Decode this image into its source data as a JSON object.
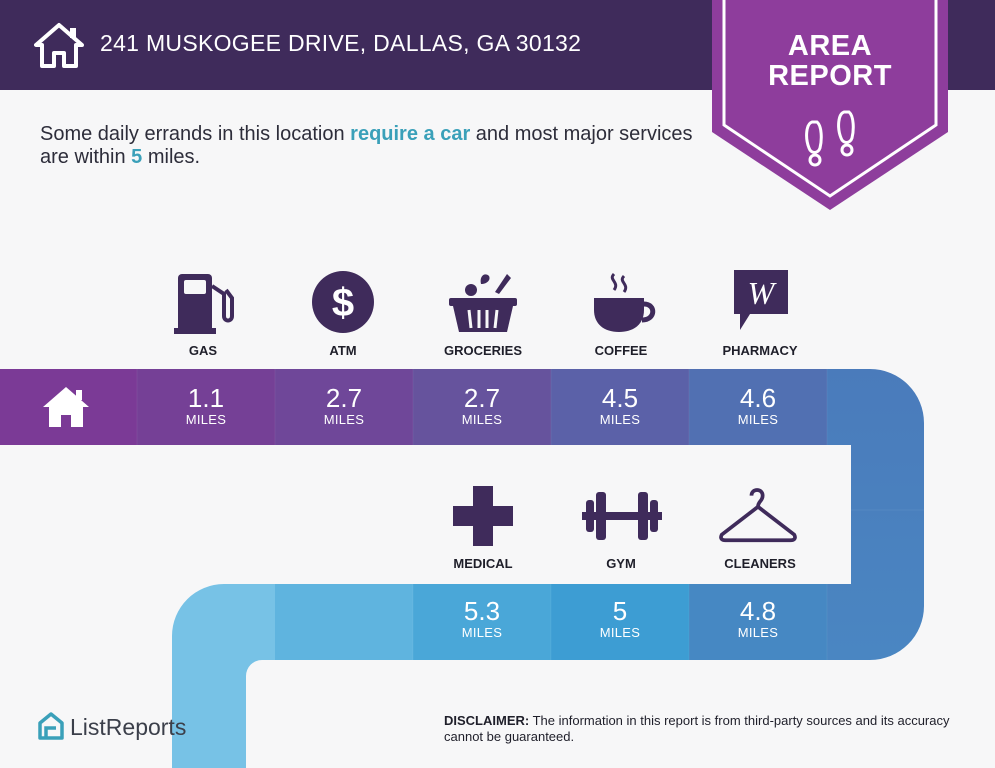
{
  "header": {
    "address": "241 MUSKOGEE DRIVE, DALLAS, GA 30132",
    "home_icon": "house-icon"
  },
  "badge": {
    "line1": "AREA",
    "line2": "REPORT",
    "icon": "footprints-icon",
    "color": "#8e3d9c"
  },
  "intro": {
    "part1": "Some daily errands in this location ",
    "highlight1": "require a car",
    "part2": " and most major services are within ",
    "highlight2": "5",
    "part3": " miles."
  },
  "services_top": [
    {
      "label": "GAS",
      "value": "1.1",
      "unit": "MILES",
      "icon": "gas-pump-icon"
    },
    {
      "label": "ATM",
      "value": "2.7",
      "unit": "MILES",
      "icon": "dollar-icon"
    },
    {
      "label": "GROCERIES",
      "value": "2.7",
      "unit": "MILES",
      "icon": "grocery-basket-icon"
    },
    {
      "label": "COFFEE",
      "value": "4.5",
      "unit": "MILES",
      "icon": "coffee-cup-icon"
    },
    {
      "label": "PHARMACY",
      "value": "4.6",
      "unit": "MILES",
      "icon": "pharmacy-w-icon"
    }
  ],
  "services_bottom": [
    {
      "label": "MEDICAL",
      "value": "5.3",
      "unit": "MILES",
      "icon": "medical-cross-icon"
    },
    {
      "label": "GYM",
      "value": "5",
      "unit": "MILES",
      "icon": "dumbbell-icon"
    },
    {
      "label": "CLEANERS",
      "value": "4.8",
      "unit": "MILES",
      "icon": "hanger-icon"
    }
  ],
  "colors": {
    "header": "#3f2b5b",
    "accent": "#3aa0b9",
    "icon": "#3f2b5b"
  },
  "footer": {
    "logo_text": "ListReports",
    "disclaimer_label": "DISCLAIMER:",
    "disclaimer_text": " The information in this report is from third-party sources and its accuracy cannot be guaranteed."
  }
}
